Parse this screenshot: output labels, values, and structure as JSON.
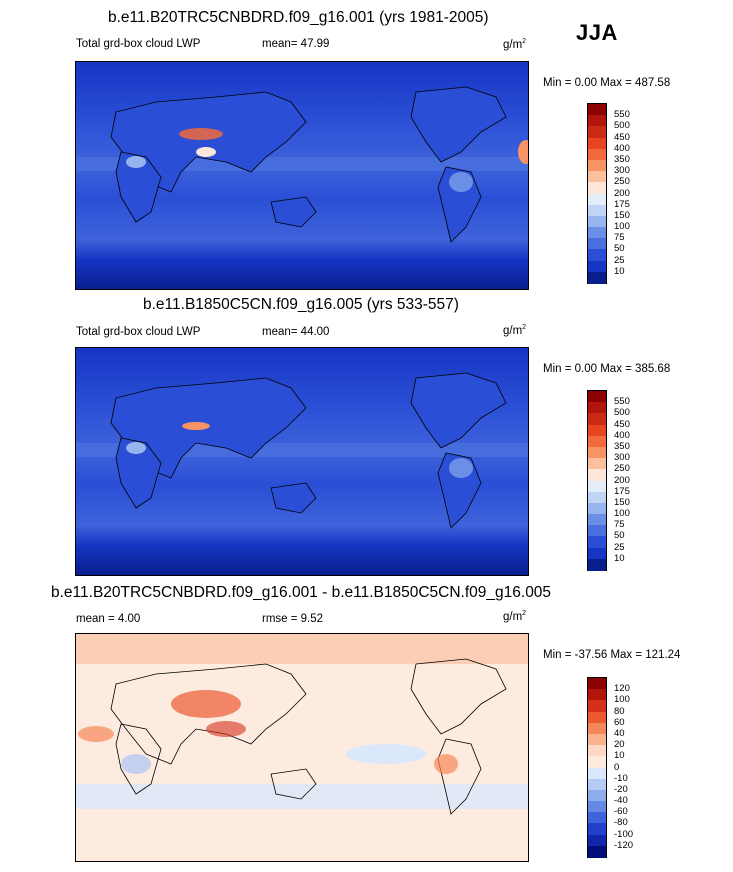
{
  "season": "JJA",
  "units": "g/m",
  "units_sup": "2",
  "panels": [
    {
      "title": "b.e11.B20TRC5CNBDRD.f09_g16.001 (yrs 1981-2005)",
      "variable": "Total grd-box cloud LWP",
      "mean": "mean=  47.99",
      "minmax": "Min =    0.00 Max = 487.58",
      "colorbar_labels": [
        "550",
        "500",
        "450",
        "400",
        "350",
        "300",
        "250",
        "200",
        "175",
        "150",
        "100",
        "75",
        "50",
        "25",
        "10"
      ],
      "colorbar_colors": [
        "#8b0000",
        "#b2150c",
        "#cc2a14",
        "#e6451e",
        "#f06a3c",
        "#f89364",
        "#fbc19c",
        "#fde7d8",
        "#e4eefb",
        "#c0d4f5",
        "#96b4ee",
        "#6b8fe6",
        "#4a6fdf",
        "#2a4fd6",
        "#1735c4",
        "#071e8c"
      ]
    },
    {
      "title": "b.e11.B1850C5CN.f09_g16.005 (yrs 533-557)",
      "variable": "Total grd-box cloud LWP",
      "mean": "mean=  44.00",
      "minmax": "Min =    0.00 Max = 385.68",
      "colorbar_labels": [
        "550",
        "500",
        "450",
        "400",
        "350",
        "300",
        "250",
        "200",
        "175",
        "150",
        "100",
        "75",
        "50",
        "25",
        "10"
      ],
      "colorbar_colors": [
        "#8b0000",
        "#b2150c",
        "#cc2a14",
        "#e6451e",
        "#f06a3c",
        "#f89364",
        "#fbc19c",
        "#fde7d8",
        "#e4eefb",
        "#c0d4f5",
        "#96b4ee",
        "#6b8fe6",
        "#4a6fdf",
        "#2a4fd6",
        "#1735c4",
        "#071e8c"
      ]
    },
    {
      "title": "b.e11.B20TRC5CNBDRD.f09_g16.001 - b.e11.B1850C5CN.f09_g16.005",
      "variable": "mean =   4.00",
      "mean": "rmse =   9.52",
      "minmax": "Min = -37.56 Max = 121.24",
      "colorbar_labels": [
        "120",
        "100",
        "80",
        "60",
        "40",
        "20",
        "10",
        "0",
        "-10",
        "-20",
        "-40",
        "-60",
        "-80",
        "-100",
        "-120"
      ],
      "colorbar_colors": [
        "#8b0000",
        "#b2150c",
        "#d6301a",
        "#ec5a30",
        "#f6875a",
        "#fab38c",
        "#fdd9c4",
        "#fdebe0",
        "#dbe8fb",
        "#b4cbf3",
        "#8caceb",
        "#6689e3",
        "#3f63da",
        "#2340cc",
        "#1126a8",
        "#000e7a"
      ]
    }
  ]
}
